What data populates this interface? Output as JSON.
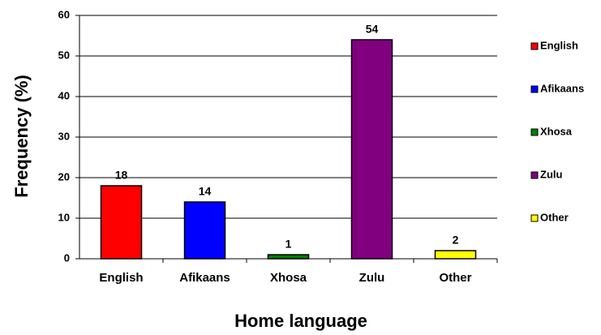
{
  "chart_data": {
    "type": "bar",
    "x_label": "Home language",
    "y_label": "Frequency (%)",
    "categories": [
      "English",
      "Afikaans",
      "Xhosa",
      "Zulu",
      "Other"
    ],
    "values": [
      18,
      14,
      1,
      54,
      2
    ],
    "colors": [
      "#ff0000",
      "#0000ff",
      "#008000",
      "#800080",
      "#ffff00"
    ],
    "ylim": [
      0,
      60
    ],
    "yticks": [
      0,
      10,
      20,
      30,
      40,
      50,
      60
    ],
    "grid": true,
    "legend": "right"
  }
}
